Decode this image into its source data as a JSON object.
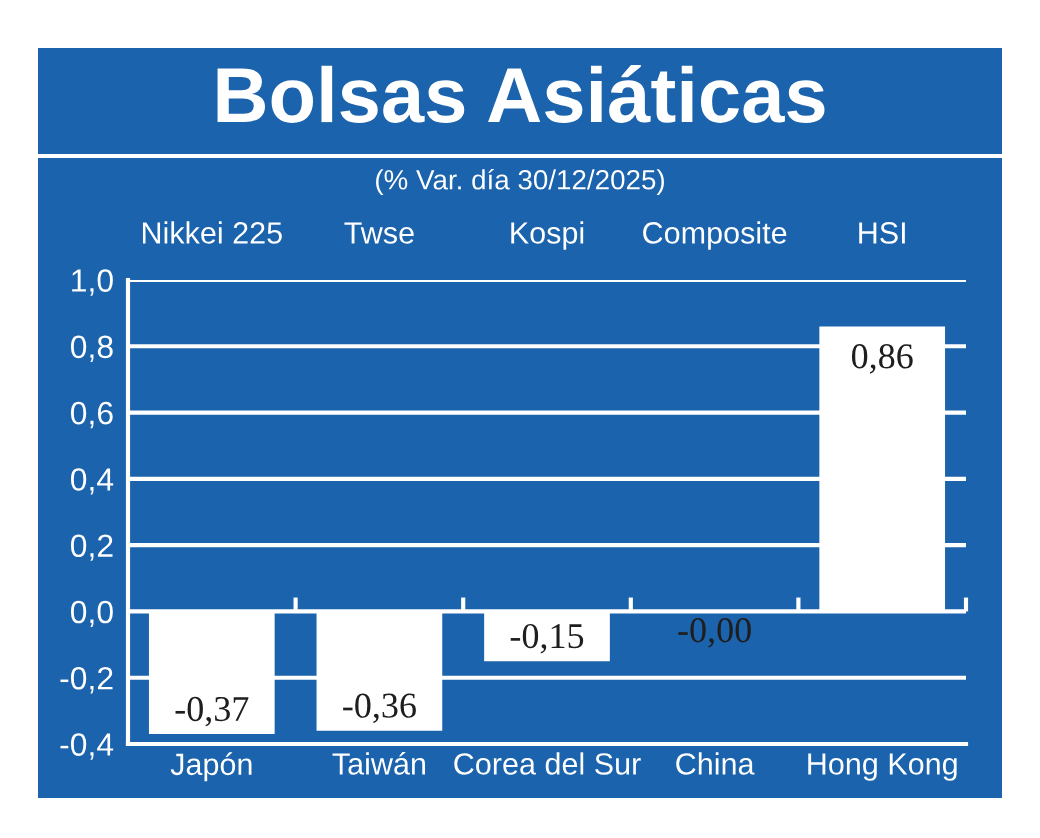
{
  "chart_data": {
    "type": "bar",
    "title": "Bolsas Asiáticas",
    "subtitle": "(% Var. día 30/12/2025)",
    "categories": [
      "Japón",
      "Taiwán",
      "Corea del Sur",
      "China",
      "Hong Kong"
    ],
    "values": [
      -0.37,
      -0.36,
      -0.15,
      0,
      0.86
    ],
    "color": "#ffffff",
    "value_labels": [
      "-0,37",
      "-0,36",
      "-0,15",
      "-0,00",
      "0,86"
    ],
    "ylim": [
      -0.4,
      1.0
    ],
    "yticks": [
      {
        "value": -0.4,
        "label": "-0,4"
      },
      {
        "value": -0.2,
        "label": "-0,2"
      },
      {
        "value": 0,
        "label": "0,0"
      },
      {
        "value": 0.2,
        "label": "0,2"
      },
      {
        "value": 0.4,
        "label": "0,4"
      },
      {
        "value": 0.6,
        "label": "0,6"
      },
      {
        "value": 0.8,
        "label": "0,8"
      },
      {
        "value": 1.0,
        "label": "1,0"
      }
    ],
    "grid": "y",
    "annotations": [
      "Nikkei 225",
      "Twse",
      "Kospi",
      "Composite",
      "HSI"
    ]
  }
}
